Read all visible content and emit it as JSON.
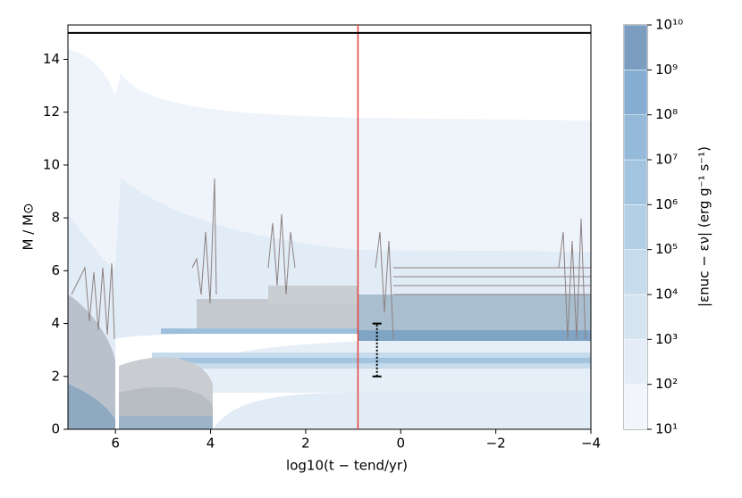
{
  "chart_data": {
    "type": "kippenhahn",
    "xlabel": "log10(t − tend/yr)",
    "ylabel": "M / M⊙",
    "colorbar_label": "|εnuc − εν| (erg g⁻¹ s⁻¹)",
    "xlim": [
      7,
      -4
    ],
    "xticks": [
      6,
      4,
      2,
      0,
      {
        "value": -2,
        "label": "−2"
      },
      {
        "value": -4,
        "label": "−4"
      }
    ],
    "ylim": [
      0,
      15.3
    ],
    "yticks": [
      0,
      2,
      4,
      6,
      8,
      10,
      12,
      14
    ],
    "clim": [
      1,
      10
    ],
    "cticks": [
      {
        "value": 1,
        "label": "10¹"
      },
      {
        "value": 2,
        "label": "10²"
      },
      {
        "value": 3,
        "label": "10³"
      },
      {
        "value": 4,
        "label": "10⁴"
      },
      {
        "value": 5,
        "label": "10⁵"
      },
      {
        "value": 6,
        "label": "10⁶"
      },
      {
        "value": 7,
        "label": "10⁷"
      },
      {
        "value": 8,
        "label": "10⁸"
      },
      {
        "value": 9,
        "label": "10⁹"
      },
      {
        "value": 10,
        "label": "10¹⁰"
      }
    ],
    "colors": [
      "#f2f6fb",
      "#e4edf7",
      "#d6e4f1",
      "#c6dbec",
      "#b3cfe6",
      "#a3c4df",
      "#94b9d9",
      "#86aed2",
      "#7b9ec0"
    ],
    "vline": 0.9,
    "vline_color": "#e8403a",
    "hline": 15,
    "hline_color": "#000000",
    "error_bar": {
      "x": 0.5,
      "y": [
        2,
        4
      ]
    }
  }
}
